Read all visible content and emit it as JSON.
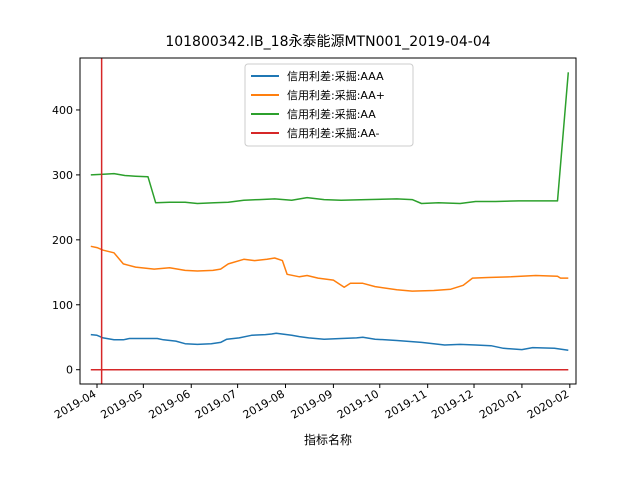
{
  "chart_data": {
    "type": "line",
    "title": "101800342.IB_18永泰能源MTN001_2019-04-04",
    "xlabel": "指标名称",
    "ylabel": "",
    "x_ticks": [
      "2019-04",
      "2019-05",
      "2019-06",
      "2019-07",
      "2019-08",
      "2019-09",
      "2019-10",
      "2019-11",
      "2019-12",
      "2020-01",
      "2020-02"
    ],
    "y_ticks": [
      0,
      100,
      200,
      300,
      400
    ],
    "xlim": [
      "2019-03-21",
      "2020-02-05"
    ],
    "ylim": [
      -22,
      480
    ],
    "legend_position": "top-center",
    "grid": false,
    "vline": {
      "x": "2019-04-04",
      "color": "#d62728"
    },
    "series": [
      {
        "name": "信用利差:采掘:AAA",
        "color": "#1f77b4",
        "points": [
          [
            "2019-03-28",
            54
          ],
          [
            "2019-04-01",
            53
          ],
          [
            "2019-04-05",
            49
          ],
          [
            "2019-04-12",
            46
          ],
          [
            "2019-04-18",
            46
          ],
          [
            "2019-04-22",
            48
          ],
          [
            "2019-04-26",
            48
          ],
          [
            "2019-05-10",
            48
          ],
          [
            "2019-05-14",
            46
          ],
          [
            "2019-05-22",
            44
          ],
          [
            "2019-05-28",
            40
          ],
          [
            "2019-06-05",
            39
          ],
          [
            "2019-06-14",
            40
          ],
          [
            "2019-06-20",
            42
          ],
          [
            "2019-06-24",
            47
          ],
          [
            "2019-07-02",
            49
          ],
          [
            "2019-07-10",
            53
          ],
          [
            "2019-07-19",
            54
          ],
          [
            "2019-07-23",
            55
          ],
          [
            "2019-07-26",
            56
          ],
          [
            "2019-08-05",
            53
          ],
          [
            "2019-08-10",
            51
          ],
          [
            "2019-08-16",
            49
          ],
          [
            "2019-08-26",
            47
          ],
          [
            "2019-09-06",
            48
          ],
          [
            "2019-09-16",
            49
          ],
          [
            "2019-09-20",
            50
          ],
          [
            "2019-09-28",
            47
          ],
          [
            "2019-10-12",
            45
          ],
          [
            "2019-10-28",
            42
          ],
          [
            "2019-11-12",
            38
          ],
          [
            "2019-11-22",
            39
          ],
          [
            "2019-12-02",
            38
          ],
          [
            "2019-12-12",
            37
          ],
          [
            "2019-12-20",
            33
          ],
          [
            "2020-01-01",
            31
          ],
          [
            "2020-01-08",
            34
          ],
          [
            "2020-01-22",
            33
          ],
          [
            "2020-01-31",
            30
          ]
        ]
      },
      {
        "name": "信用利差:采掘:AA+",
        "color": "#ff7f0e",
        "points": [
          [
            "2019-03-28",
            190
          ],
          [
            "2019-04-01",
            188
          ],
          [
            "2019-04-05",
            184
          ],
          [
            "2019-04-12",
            180
          ],
          [
            "2019-04-18",
            163
          ],
          [
            "2019-04-26",
            158
          ],
          [
            "2019-05-08",
            155
          ],
          [
            "2019-05-18",
            157
          ],
          [
            "2019-05-28",
            153
          ],
          [
            "2019-06-05",
            152
          ],
          [
            "2019-06-15",
            153
          ],
          [
            "2019-06-20",
            155
          ],
          [
            "2019-06-25",
            163
          ],
          [
            "2019-07-05",
            170
          ],
          [
            "2019-07-12",
            168
          ],
          [
            "2019-07-20",
            170
          ],
          [
            "2019-07-25",
            172
          ],
          [
            "2019-07-30",
            168
          ],
          [
            "2019-08-02",
            147
          ],
          [
            "2019-08-10",
            143
          ],
          [
            "2019-08-15",
            145
          ],
          [
            "2019-08-22",
            141
          ],
          [
            "2019-09-01",
            138
          ],
          [
            "2019-09-08",
            127
          ],
          [
            "2019-09-12",
            133
          ],
          [
            "2019-09-20",
            133
          ],
          [
            "2019-09-28",
            128
          ],
          [
            "2019-10-12",
            123
          ],
          [
            "2019-10-22",
            121
          ],
          [
            "2019-11-05",
            122
          ],
          [
            "2019-11-16",
            124
          ],
          [
            "2019-11-24",
            130
          ],
          [
            "2019-11-30",
            141
          ],
          [
            "2019-12-10",
            142
          ],
          [
            "2019-12-25",
            143
          ],
          [
            "2020-01-10",
            145
          ],
          [
            "2020-01-24",
            144
          ],
          [
            "2020-01-26",
            141
          ],
          [
            "2020-01-31",
            141
          ]
        ]
      },
      {
        "name": "信用利差:采掘:AA",
        "color": "#2ca02c",
        "points": [
          [
            "2019-03-28",
            300
          ],
          [
            "2019-04-05",
            301
          ],
          [
            "2019-04-12",
            302
          ],
          [
            "2019-04-19",
            299
          ],
          [
            "2019-04-26",
            298
          ],
          [
            "2019-05-04",
            297
          ],
          [
            "2019-05-09",
            257
          ],
          [
            "2019-05-18",
            258
          ],
          [
            "2019-05-28",
            258
          ],
          [
            "2019-06-05",
            256
          ],
          [
            "2019-06-16",
            257
          ],
          [
            "2019-06-25",
            258
          ],
          [
            "2019-07-05",
            261
          ],
          [
            "2019-07-15",
            262
          ],
          [
            "2019-07-25",
            263
          ],
          [
            "2019-08-05",
            261
          ],
          [
            "2019-08-15",
            265
          ],
          [
            "2019-08-26",
            262
          ],
          [
            "2019-09-06",
            261
          ],
          [
            "2019-09-22",
            262
          ],
          [
            "2019-10-12",
            263
          ],
          [
            "2019-10-22",
            262
          ],
          [
            "2019-10-28",
            256
          ],
          [
            "2019-11-08",
            257
          ],
          [
            "2019-11-22",
            256
          ],
          [
            "2019-12-02",
            259
          ],
          [
            "2019-12-15",
            259
          ],
          [
            "2019-12-30",
            260
          ],
          [
            "2020-01-10",
            260
          ],
          [
            "2020-01-24",
            260
          ],
          [
            "2020-01-31",
            458
          ]
        ]
      },
      {
        "name": "信用利差:采掘:AA-",
        "color": "#d62728",
        "points": [
          [
            "2019-03-28",
            0
          ],
          [
            "2020-01-31",
            0
          ]
        ]
      }
    ]
  }
}
